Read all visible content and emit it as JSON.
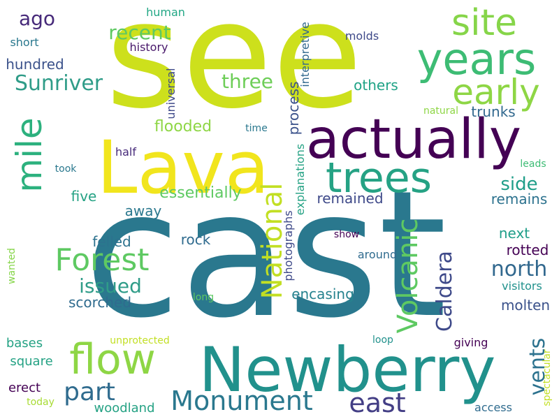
{
  "words": [
    {
      "text": "see",
      "color": "#cde01c"
    },
    {
      "text": "cast",
      "color": "#2a788e"
    },
    {
      "text": "Newberry",
      "color": "#21918c"
    },
    {
      "text": "Lava",
      "color": "#f1e51d"
    },
    {
      "text": "actually",
      "color": "#440154"
    },
    {
      "text": "years",
      "color": "#3dbc74"
    },
    {
      "text": "trees",
      "color": "#25a284"
    },
    {
      "text": "site",
      "color": "#86d549"
    },
    {
      "text": "early",
      "color": "#8ed645"
    },
    {
      "text": "flow",
      "color": "#8ed645"
    },
    {
      "text": "mile",
      "color": "#2cb17e"
    },
    {
      "text": "Forest",
      "color": "#5ec962"
    },
    {
      "text": "National",
      "color": "#c2df23"
    },
    {
      "text": "Volcanic",
      "color": "#5ec962"
    },
    {
      "text": "Monument",
      "color": "#2a788e"
    },
    {
      "text": "east",
      "color": "#433e85"
    },
    {
      "text": "part",
      "color": "#2f6b8e"
    },
    {
      "text": "north",
      "color": "#31688e"
    },
    {
      "text": "Caldera",
      "color": "#3e4989"
    },
    {
      "text": "vents",
      "color": "#2c728e"
    },
    {
      "text": "Sunriver",
      "color": "#2f9c88"
    },
    {
      "text": "issued",
      "color": "#2f9c88"
    },
    {
      "text": "ago",
      "color": "#472a7a"
    },
    {
      "text": "recent",
      "color": "#5ec962"
    },
    {
      "text": "three",
      "color": "#6ece58"
    },
    {
      "text": "side",
      "color": "#1f9e89"
    },
    {
      "text": "essentially",
      "color": "#5ec962"
    },
    {
      "text": "flooded",
      "color": "#8ed645"
    },
    {
      "text": "process",
      "color": "#3b528b"
    },
    {
      "text": "encasing",
      "color": "#26828e"
    },
    {
      "text": "remained",
      "color": "#3e4989"
    },
    {
      "text": "remains",
      "color": "#2c728e"
    },
    {
      "text": "molten",
      "color": "#3b528b"
    },
    {
      "text": "rotted",
      "color": "#440154"
    },
    {
      "text": "felled",
      "color": "#2c728e"
    },
    {
      "text": "rock",
      "color": "#2f6b8e"
    },
    {
      "text": "away",
      "color": "#2a788e"
    },
    {
      "text": "scorched",
      "color": "#2f6b8e"
    },
    {
      "text": "trunks",
      "color": "#31688e"
    },
    {
      "text": "hundred",
      "color": "#3b528b"
    },
    {
      "text": "next",
      "color": "#1f9e89"
    },
    {
      "text": "five",
      "color": "#25a284"
    },
    {
      "text": "others",
      "color": "#20a386"
    },
    {
      "text": "bases",
      "color": "#25a284"
    },
    {
      "text": "square",
      "color": "#25a284"
    },
    {
      "text": "erect",
      "color": "#440154"
    },
    {
      "text": "woodland",
      "color": "#25a284"
    },
    {
      "text": "history",
      "color": "#48186a"
    },
    {
      "text": "molds",
      "color": "#3e4989"
    },
    {
      "text": "universal",
      "color": "#3e4989"
    },
    {
      "text": "interpretive",
      "color": "#31688e"
    },
    {
      "text": "explanations",
      "color": "#25a284"
    },
    {
      "text": "photographs",
      "color": "#3e4989"
    },
    {
      "text": "human",
      "color": "#22a785"
    },
    {
      "text": "short",
      "color": "#2a788e"
    },
    {
      "text": "natural",
      "color": "#8ed645"
    },
    {
      "text": "time",
      "color": "#2a788e"
    },
    {
      "text": "half",
      "color": "#472a7a"
    },
    {
      "text": "took",
      "color": "#2a788e"
    },
    {
      "text": "leads",
      "color": "#3dbc74"
    },
    {
      "text": "show",
      "color": "#440154"
    },
    {
      "text": "around",
      "color": "#2f6b8e"
    },
    {
      "text": "visitors",
      "color": "#21918c"
    },
    {
      "text": "long",
      "color": "#5ec962"
    },
    {
      "text": "wanted",
      "color": "#86d549"
    },
    {
      "text": "unprotected",
      "color": "#c2df23"
    },
    {
      "text": "loop",
      "color": "#21918c"
    },
    {
      "text": "giving",
      "color": "#440154"
    },
    {
      "text": "spectacular",
      "color": "#c2df23"
    },
    {
      "text": "today",
      "color": "#a8db34"
    },
    {
      "text": "access",
      "color": "#2f6b8e"
    }
  ]
}
